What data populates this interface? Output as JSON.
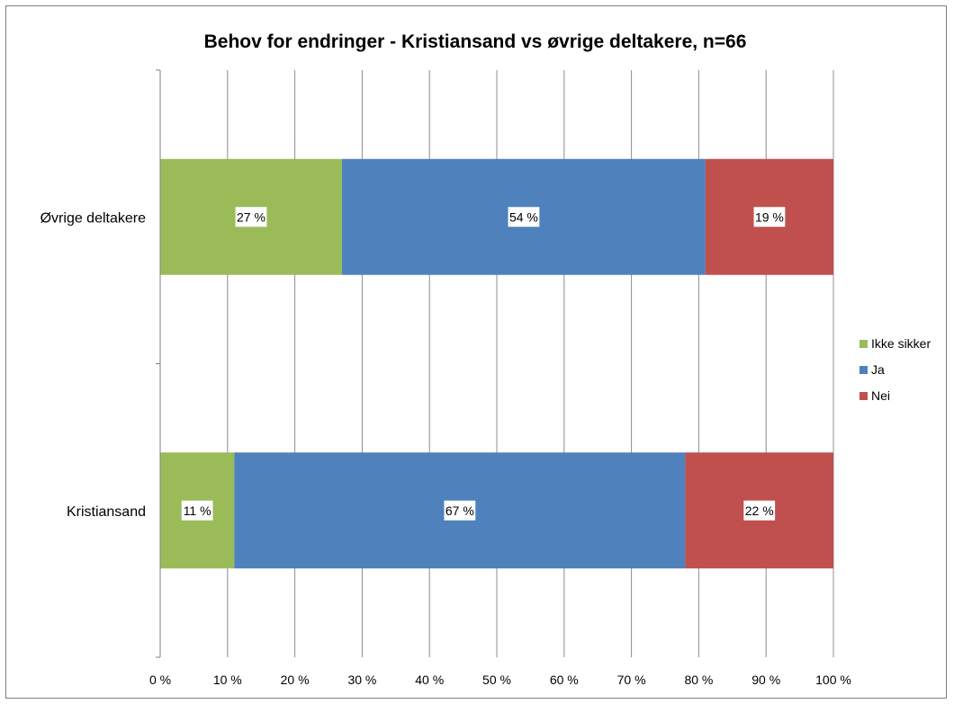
{
  "chart_data": {
    "type": "bar",
    "orientation": "horizontal",
    "stacked": "percent",
    "title": "Behov for endringer - Kristiansand vs øvrige deltakere, n=66",
    "categories": [
      "Øvrige deltakere",
      "Kristiansand"
    ],
    "series": [
      {
        "name": "Ikke sikker",
        "values": [
          27,
          11
        ],
        "labels": [
          "27 %",
          "11 %"
        ],
        "color": "#9BBB59"
      },
      {
        "name": "Ja",
        "values": [
          54,
          67
        ],
        "labels": [
          "54 %",
          "67 %"
        ],
        "color": "#4F81BD"
      },
      {
        "name": "Nei",
        "values": [
          19,
          22
        ],
        "labels": [
          "19 %",
          "22 %"
        ],
        "color": "#C0504D"
      }
    ],
    "xlim": [
      0,
      100
    ],
    "xticks": [
      "0 %",
      "10 %",
      "20 %",
      "30 %",
      "40 %",
      "50 %",
      "60 %",
      "70 %",
      "80 %",
      "90 %",
      "100 %"
    ],
    "grid": true,
    "legend_position": "right"
  }
}
